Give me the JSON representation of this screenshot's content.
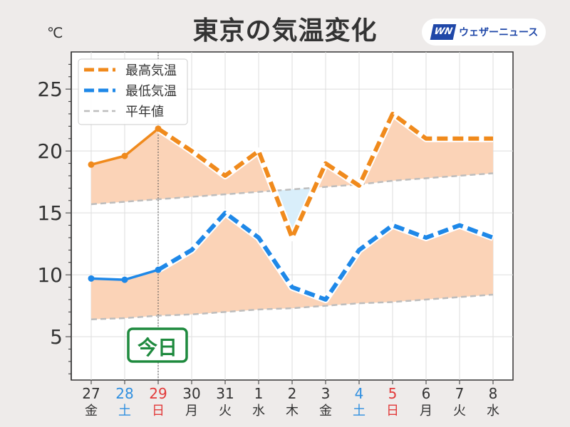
{
  "brand": {
    "badge": "WN",
    "name": "ウェザーニュース"
  },
  "chart_data": {
    "type": "line",
    "title": "東京の気温変化",
    "ylabel": "℃",
    "ylim": [
      1.5,
      28
    ],
    "yticks": [
      5,
      10,
      15,
      20,
      25
    ],
    "grid": true,
    "legend_position": "top-left",
    "today_label": "今日",
    "today_index": 2,
    "categories": [
      {
        "day": "27",
        "weekday": "金",
        "color": "#333333"
      },
      {
        "day": "28",
        "weekday": "土",
        "color": "#2f8fe0"
      },
      {
        "day": "29",
        "weekday": "日",
        "color": "#e23a3a"
      },
      {
        "day": "30",
        "weekday": "月",
        "color": "#333333"
      },
      {
        "day": "31",
        "weekday": "火",
        "color": "#333333"
      },
      {
        "day": "1",
        "weekday": "水",
        "color": "#333333"
      },
      {
        "day": "2",
        "weekday": "木",
        "color": "#333333"
      },
      {
        "day": "3",
        "weekday": "金",
        "color": "#333333"
      },
      {
        "day": "4",
        "weekday": "土",
        "color": "#2f8fe0"
      },
      {
        "day": "5",
        "weekday": "日",
        "color": "#e23a3a"
      },
      {
        "day": "6",
        "weekday": "月",
        "color": "#333333"
      },
      {
        "day": "7",
        "weekday": "火",
        "color": "#333333"
      },
      {
        "day": "8",
        "weekday": "水",
        "color": "#333333"
      }
    ],
    "series": [
      {
        "name": "最高気温",
        "color": "#f08a1c",
        "values": [
          18.9,
          19.6,
          21.8,
          20.0,
          18.0,
          20.0,
          13.0,
          19.0,
          17.2,
          23.0,
          21.0,
          21.0,
          21.0
        ]
      },
      {
        "name": "最低気温",
        "color": "#1e88e8",
        "values": [
          9.7,
          9.6,
          10.4,
          12.0,
          15.0,
          13.0,
          9.0,
          8.0,
          12.0,
          14.0,
          13.0,
          14.0,
          13.0
        ]
      },
      {
        "name": "平年値",
        "color": "#bdbdbd",
        "values_high": [
          15.7,
          15.9,
          16.1,
          16.3,
          16.5,
          16.7,
          16.9,
          17.1,
          17.3,
          17.6,
          17.8,
          18.0,
          18.2
        ],
        "values_low": [
          6.4,
          6.5,
          6.7,
          6.8,
          7.0,
          7.2,
          7.3,
          7.5,
          7.7,
          7.8,
          8.0,
          8.2,
          8.4
        ]
      }
    ]
  }
}
